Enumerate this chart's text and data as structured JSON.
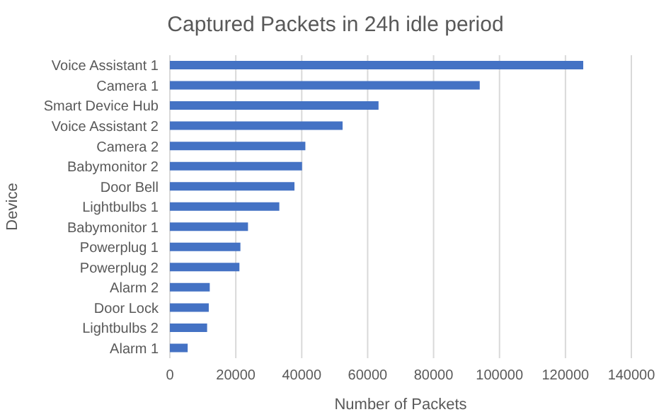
{
  "chart_data": {
    "type": "bar",
    "orientation": "horizontal",
    "title": "Captured Packets in 24h idle period",
    "xlabel": "Number of Packets",
    "ylabel": "Device",
    "categories": [
      "Voice Assistant 1",
      "Camera 1",
      "Smart Device Hub",
      "Voice Assistant 2",
      "Camera 2",
      "Babymonitor 2",
      "Door Bell",
      "Lightbulbs 1",
      "Babymonitor 1",
      "Powerplug 1",
      "Powerplug 2",
      "Alarm 2",
      "Door Lock",
      "Lightbulbs 2",
      "Alarm 1"
    ],
    "values": [
      125400,
      94000,
      63300,
      52400,
      41100,
      40100,
      37800,
      33200,
      23700,
      21400,
      21100,
      12100,
      11800,
      11300,
      5400
    ],
    "color": "#4472c4",
    "xlim": [
      0,
      140000
    ],
    "xticks": [
      0,
      20000,
      40000,
      60000,
      80000,
      100000,
      120000,
      140000
    ],
    "grid": "x"
  }
}
